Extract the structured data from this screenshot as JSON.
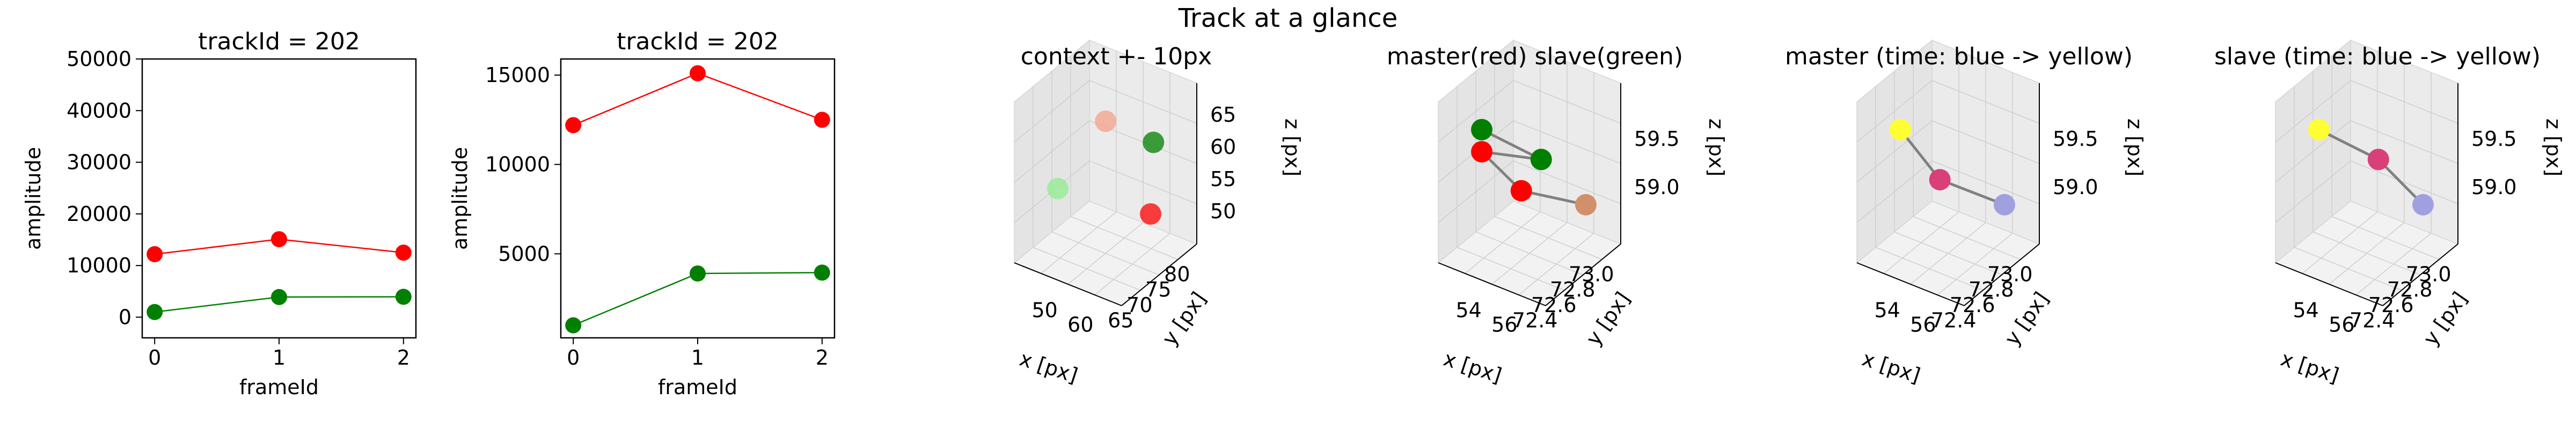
{
  "figure": {
    "suptitle": "Track at a glance"
  },
  "chart_data": [
    {
      "type": "line",
      "title": "trackId = 202",
      "xlabel": "frameId",
      "ylabel": "amplitude",
      "x": [
        0,
        1,
        2
      ],
      "xticks": [
        0,
        1,
        2
      ],
      "yticks": [
        0,
        10000,
        20000,
        30000,
        40000,
        50000
      ],
      "xlim": [
        -0.1,
        2.1
      ],
      "ylim": [
        -4000,
        50000
      ],
      "series": [
        {
          "color": "#ff0000",
          "values": [
            12200,
            15100,
            12500
          ]
        },
        {
          "color": "#008000",
          "values": [
            1000,
            3900,
            3950
          ]
        }
      ]
    },
    {
      "type": "line",
      "title": "trackId = 202",
      "xlabel": "frameId",
      "ylabel": "amplitude",
      "x": [
        0,
        1,
        2
      ],
      "xticks": [
        0,
        1,
        2
      ],
      "yticks": [
        5000,
        10000,
        15000
      ],
      "xlim": [
        -0.1,
        2.1
      ],
      "ylim": [
        300,
        15900
      ],
      "series": [
        {
          "color": "#ff0000",
          "values": [
            12200,
            15100,
            12500
          ]
        },
        {
          "color": "#008000",
          "values": [
            1000,
            3900,
            3950
          ]
        }
      ]
    },
    {
      "type": "scatter3d",
      "title": "context +- 10px",
      "xlabel": "x [px]",
      "ylabel": "y [px]",
      "zlabel": "z [px]",
      "xticks": [
        "50",
        "60"
      ],
      "yticks": [
        "65",
        "70",
        "75",
        "80"
      ],
      "zticks": [
        "50",
        "55",
        "60",
        "65"
      ],
      "points": [
        {
          "x": 54.6,
          "y": 72.6,
          "z": 59.0,
          "color": "#90ee90"
        },
        {
          "x": 55.2,
          "y": 72.8,
          "z": 59.2,
          "color": "#f4a08a"
        },
        {
          "x": 55.8,
          "y": 73.0,
          "z": 59.1,
          "color": "#008000"
        },
        {
          "x": 56.0,
          "y": 72.9,
          "z": 58.9,
          "color": "#ff0000"
        }
      ]
    },
    {
      "type": "scatter3d",
      "title": "master(red) slave(green)",
      "xlabel": "x [px]",
      "ylabel": "y [px]",
      "zlabel": "z [px]",
      "xticks": [
        "54",
        "56"
      ],
      "yticks": [
        "72.4",
        "72.6",
        "72.8",
        "73.0"
      ],
      "zticks": [
        "59.0",
        "59.5"
      ],
      "points": [
        {
          "x": 53.6,
          "y": 72.4,
          "z": 59.85,
          "color": "#008000"
        },
        {
          "x": 56.6,
          "y": 72.45,
          "z": 59.75,
          "color": "#008000"
        },
        {
          "x": 53.6,
          "y": 72.4,
          "z": 59.65,
          "color": "#ff0000"
        },
        {
          "x": 55.3,
          "y": 72.5,
          "z": 59.35,
          "color": "#ff0000"
        },
        {
          "x": 56.8,
          "y": 72.95,
          "z": 59.05,
          "color": "#d2906a"
        }
      ]
    },
    {
      "type": "scatter3d",
      "title": "master (time: blue -> yellow)",
      "xlabel": "x [px]",
      "ylabel": "y [px]",
      "zlabel": "z [px]",
      "xticks": [
        "54",
        "56"
      ],
      "yticks": [
        "72.4",
        "72.6",
        "72.8",
        "73.0"
      ],
      "zticks": [
        "59.0",
        "59.5"
      ],
      "points": [
        {
          "x": 53.6,
          "y": 72.4,
          "z": 59.65,
          "color": "#ffff33"
        },
        {
          "x": 55.3,
          "y": 72.5,
          "z": 59.35,
          "color": "#d9407a"
        },
        {
          "x": 56.8,
          "y": 72.95,
          "z": 59.05,
          "color": "#a0a0e0"
        }
      ]
    },
    {
      "type": "scatter3d",
      "title": "slave (time: blue -> yellow)",
      "xlabel": "x [px]",
      "ylabel": "y [px]",
      "zlabel": "z [px]",
      "xticks": [
        "54",
        "56"
      ],
      "yticks": [
        "72.4",
        "72.6",
        "72.8",
        "73.0"
      ],
      "zticks": [
        "59.0",
        "59.5"
      ],
      "points": [
        {
          "x": 53.6,
          "y": 72.4,
          "z": 59.85,
          "color": "#ffff33"
        },
        {
          "x": 56.6,
          "y": 72.45,
          "z": 59.75,
          "color": "#d9407a"
        },
        {
          "x": 56.8,
          "y": 72.95,
          "z": 59.05,
          "color": "#a0a0e0"
        }
      ]
    }
  ]
}
